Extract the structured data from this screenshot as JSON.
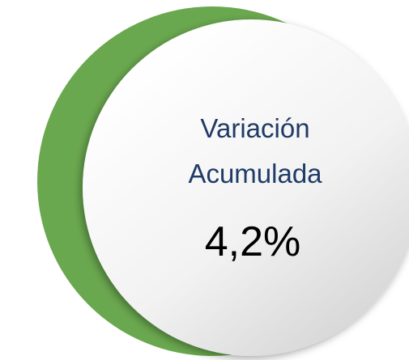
{
  "badge": {
    "label": [
      "Variación",
      "Acumulada"
    ],
    "value": "4,2%"
  }
}
